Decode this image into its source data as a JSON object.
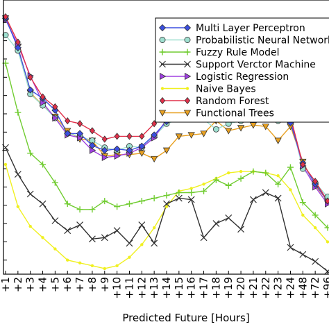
{
  "chart_data": {
    "type": "line",
    "title": "",
    "xlabel": "Predicted Future [Hours]",
    "ylabel": "",
    "categories": [
      "+1",
      "+2",
      "+3",
      "+4",
      "+5",
      "+6",
      "+7",
      "+8",
      "+9",
      "+10",
      "+11",
      "+12",
      "+13",
      "+14",
      "+15",
      "+16",
      "+17",
      "+18",
      "+19",
      "+20",
      "+21",
      "+22",
      "+23",
      "+24",
      "+48",
      "+72",
      "+96"
    ],
    "ylim": [
      0,
      380
    ],
    "grid": false,
    "legend_position": "top-right",
    "series": [
      {
        "name": "Multi Layer Perceptron",
        "color": "#3b4fe0",
        "marker": "diamond",
        "values": [
          364,
          322,
          262,
          250,
          233,
          200,
          200,
          183,
          176,
          178,
          176,
          182,
          198,
          217,
          224,
          226,
          226,
          226,
          226,
          226,
          224,
          226,
          224,
          215,
          158,
          128,
          104
        ]
      },
      {
        "name": "Probabilistic Neural Network",
        "color": "#9fe0d0",
        "marker": "circle",
        "values": [
          340,
          318,
          256,
          240,
          222,
          200,
          196,
          190,
          180,
          176,
          182,
          180,
          196,
          214,
          220,
          226,
          220,
          206,
          214,
          218,
          220,
          220,
          218,
          220,
          150,
          130,
          110
        ]
      },
      {
        "name": "Fuzzy Rule Model",
        "color": "#70cc30",
        "marker": "plus",
        "values": [
          300,
          230,
          172,
          156,
          130,
          100,
          92,
          92,
          104,
          96,
          100,
          104,
          108,
          112,
          116,
          116,
          118,
          134,
          126,
          136,
          146,
          144,
          128,
          152,
          102,
          84,
          66
        ]
      },
      {
        "name": "Support Verctor Machine",
        "color": "#303030",
        "marker": "x",
        "values": [
          180,
          142,
          114,
          100,
          76,
          62,
          70,
          50,
          52,
          62,
          44,
          70,
          44,
          100,
          108,
          106,
          52,
          72,
          80,
          64,
          106,
          116,
          108,
          38,
          28,
          18,
          4
        ]
      },
      {
        "name": "Logistic Regression",
        "color": "#a040e0",
        "marker": "triangle-right",
        "values": [
          362,
          326,
          282,
          244,
          222,
          198,
          194,
          176,
          166,
          168,
          172,
          180,
          194,
          220,
          224,
          226,
          226,
          226,
          226,
          220,
          224,
          226,
          226,
          220,
          154,
          124,
          100
        ]
      },
      {
        "name": "Naive Bayes",
        "color": "#f0f020",
        "marker": "dot",
        "values": [
          156,
          96,
          68,
          52,
          36,
          20,
          16,
          12,
          8,
          12,
          24,
          42,
          66,
          96,
          118,
          122,
          128,
          136,
          144,
          146,
          146,
          144,
          140,
          120,
          84,
          66,
          46
        ]
      },
      {
        "name": "Random Forest",
        "color": "#e0304a",
        "marker": "diamond-thin",
        "values": [
          366,
          330,
          280,
          252,
          238,
          218,
          214,
          204,
          192,
          196,
          196,
          196,
          214,
          226,
          228,
          228,
          228,
          228,
          228,
          228,
          226,
          228,
          224,
          224,
          156,
          132,
          104
        ]
      },
      {
        "name": "Functional Trees",
        "color": "#e8a020",
        "marker": "triangle-down",
        "values": [
          364,
          324,
          258,
          240,
          224,
          204,
          192,
          190,
          168,
          170,
          170,
          172,
          164,
          176,
          196,
          198,
          200,
          218,
          204,
          208,
          212,
          210,
          190,
          210,
          160,
          126,
          104
        ]
      }
    ]
  }
}
